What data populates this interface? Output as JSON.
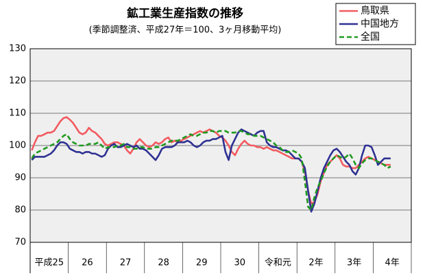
{
  "chart_data": {
    "type": "line",
    "title": "鉱工業生産指数の推移",
    "subtitle": "(季節調整済、平成27年＝100、3ヶ月移動平均)",
    "categories": [
      "平成25",
      null,
      null,
      null,
      null,
      null,
      null,
      null,
      null,
      null,
      null,
      null,
      "26",
      null,
      null,
      null,
      null,
      null,
      null,
      null,
      null,
      null,
      null,
      null,
      "27",
      null,
      null,
      null,
      null,
      null,
      null,
      null,
      null,
      null,
      null,
      null,
      "28",
      null,
      null,
      null,
      null,
      null,
      null,
      null,
      null,
      null,
      null,
      null,
      "29",
      null,
      null,
      null,
      null,
      null,
      null,
      null,
      null,
      null,
      null,
      null,
      "30",
      null,
      null,
      null,
      null,
      null,
      null,
      null,
      null,
      null,
      null,
      null,
      "令和元",
      null,
      null,
      null,
      null,
      null,
      null,
      null,
      null,
      null,
      null,
      null,
      "2年",
      null,
      null,
      null,
      null,
      null,
      null,
      null,
      null,
      null,
      null,
      null,
      "3年",
      null,
      null,
      null,
      null,
      null,
      null,
      null,
      null,
      null,
      null,
      null,
      "4年",
      null,
      null,
      null,
      null,
      null
    ],
    "series": [
      {
        "name": "鳥取県",
        "color": "#f25a5f",
        "dash": false,
        "values": [
          98.5,
          101,
          103,
          103,
          103.5,
          104,
          104,
          104.5,
          106,
          107.5,
          108.5,
          108.8,
          108,
          107,
          105.5,
          104,
          103.5,
          104,
          105.5,
          104.5,
          104,
          103,
          102,
          100.5,
          100,
          100.5,
          101,
          101,
          100.5,
          100,
          98.5,
          97.5,
          99,
          101,
          102,
          101,
          100,
          99.5,
          100,
          101,
          100.5,
          101,
          102,
          102.5,
          101,
          101.5,
          101,
          101.5,
          102,
          102.5,
          103,
          103.5,
          104,
          104.5,
          104,
          104.5,
          105,
          104.5,
          104,
          103,
          102.5,
          101.5,
          100,
          98,
          97,
          99,
          100.5,
          101.5,
          100.5,
          100,
          100,
          99.5,
          99.5,
          99,
          99.5,
          99,
          98.5,
          98.5,
          98,
          97.5,
          97,
          96.5,
          96,
          96,
          96,
          95,
          92,
          86,
          82,
          82.5,
          85,
          89,
          91.5,
          94,
          95,
          96,
          97,
          96,
          94,
          93.5,
          93.5,
          93,
          93,
          94,
          95,
          96,
          96.5,
          96,
          95.5,
          95,
          94.5,
          94,
          94,
          94
        ]
      },
      {
        "name": "中国地方",
        "color": "#2e3192",
        "dash": false,
        "values": [
          95.5,
          96.5,
          96.5,
          96.5,
          96.5,
          97,
          97.5,
          98.5,
          100,
          101,
          101,
          100.5,
          99,
          98.5,
          98,
          98,
          97.5,
          98,
          98,
          97.5,
          97.5,
          97,
          96.5,
          97,
          99,
          100,
          100.5,
          99.5,
          99.5,
          100,
          100.5,
          100,
          99.5,
          100,
          99,
          99,
          98.5,
          97.5,
          96.5,
          95.5,
          97,
          99,
          99.5,
          99.5,
          99.5,
          100,
          101,
          101,
          101,
          101.5,
          101,
          100,
          99.5,
          100,
          101,
          101.5,
          101.5,
          102,
          102,
          102.5,
          103,
          98,
          95.5,
          100,
          102,
          104,
          105,
          104.5,
          104,
          103.5,
          103,
          104,
          104.5,
          104.5,
          101,
          100,
          99.5,
          99.5,
          99,
          98.5,
          98.5,
          98,
          97,
          96,
          96,
          95,
          93,
          86,
          79.5,
          82,
          86,
          90,
          93,
          95,
          97,
          98.5,
          99,
          98,
          96.5,
          95,
          94,
          92,
          91,
          93,
          97,
          100,
          100,
          99.5,
          97,
          94,
          95,
          96,
          96,
          96
        ]
      },
      {
        "name": "全国",
        "color": "#1f9a1f",
        "dash": true,
        "values": [
          96,
          97.5,
          98,
          98.5,
          99,
          99.5,
          100,
          100.5,
          101,
          102,
          103,
          103.5,
          102,
          101,
          100.5,
          100,
          100,
          100,
          100.5,
          100.5,
          100.5,
          101,
          100,
          99,
          99.5,
          99.5,
          99.5,
          100,
          100,
          100.5,
          99.5,
          99.5,
          99,
          99,
          99.5,
          99.5,
          99,
          99,
          99,
          99.5,
          99.5,
          100,
          100.5,
          101,
          101.5,
          101.5,
          101.5,
          102,
          102.5,
          103,
          103.5,
          103,
          103,
          103.5,
          104,
          104,
          104.5,
          104.5,
          104,
          104.5,
          104.5,
          104.5,
          104,
          104,
          104,
          104.5,
          104.5,
          104,
          103.5,
          103.5,
          103,
          103,
          103,
          102.5,
          102,
          101.5,
          101,
          100,
          99.5,
          98.5,
          98,
          98,
          98.5,
          98,
          97.5,
          96,
          89,
          81,
          80,
          84,
          87,
          89,
          91.5,
          93.5,
          95,
          96,
          97,
          96.5,
          96,
          96.5,
          97.5,
          96,
          94,
          93,
          94.5,
          95.5,
          96,
          96,
          95.5,
          95,
          94.5,
          94,
          93,
          93.5
        ]
      }
    ],
    "ylim": [
      70,
      130
    ],
    "yticks": [
      70,
      80,
      90,
      100,
      110,
      120,
      130
    ],
    "grid": true,
    "legend": "top-right"
  }
}
